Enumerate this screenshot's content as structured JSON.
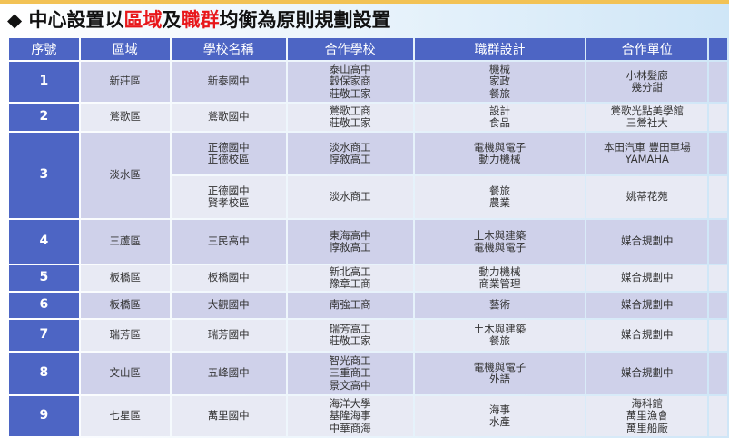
{
  "title": {
    "prefix": "◆ 中心設置以",
    "red1": "區域",
    "mid": "及",
    "red2": "職群",
    "suffix": "均衡為原則規劃設置"
  },
  "colors": {
    "header": "#4d65c4",
    "row_dark": "#cfd1ea",
    "row_light": "#e8eaf4",
    "accent_red": "#e8171b"
  },
  "headers": [
    "序號",
    "區域",
    "學校名稱",
    "合作學校",
    "職群設計",
    "合作單位"
  ],
  "rows": [
    {
      "no": "1",
      "area": "新莊區",
      "school": "新泰國中",
      "partners": "泰山高中\n穀保家商\n莊敬工家",
      "groups": "機械\n家政\n餐旅",
      "units": "小林髮廊\n幾分甜"
    },
    {
      "no": "2",
      "area": "鶯歌區",
      "school": "鶯歌國中",
      "partners": "鶯歌工商\n莊敬工家",
      "groups": "設計\n食品",
      "units": "鶯歌光點美學館\n三鶯社大"
    },
    {
      "no": "3",
      "area": "淡水區",
      "school": "正德國中\n正德校區",
      "partners": "淡水商工\n惇敘高工",
      "groups": "電機與電子\n動力機械",
      "units": "本田汽車 豐田車場\nYAMAHA"
    },
    {
      "school": "正德國中\n賢孝校區",
      "partners": "淡水商工",
      "groups": "餐旅\n農業",
      "units": "姚蒂花苑"
    },
    {
      "no": "4",
      "area": "三蘆區",
      "school": "三民高中",
      "partners": "東海高中\n惇敘高工",
      "groups": "土木與建築\n電機與電子",
      "units": "媒合規劃中"
    },
    {
      "no": "5",
      "area": "板橋區",
      "school": "板橋國中",
      "partners": "新北高工\n豫章工商",
      "groups": "動力機械\n商業管理",
      "units": "媒合規劃中"
    },
    {
      "no": "6",
      "area": "板橋區",
      "school": "大觀國中",
      "partners": "南強工商",
      "groups": "藝術",
      "units": "媒合規劃中"
    },
    {
      "no": "7",
      "area": "瑞芳區",
      "school": "瑞芳國中",
      "partners": "瑞芳高工\n莊敬工家",
      "groups": "土木與建築\n餐旅",
      "units": "媒合規劃中"
    },
    {
      "no": "8",
      "area": "文山區",
      "school": "五峰國中",
      "partners": "智光商工\n三重商工\n景文高中",
      "groups": "電機與電子\n外語",
      "units": "媒合規劃中"
    },
    {
      "no": "9",
      "area": "七星區",
      "school": "萬里國中",
      "partners": "海洋大學\n基隆海事\n中華商海",
      "groups": "海事\n水產",
      "units": "海科館\n萬里漁會\n萬里船廠"
    }
  ]
}
